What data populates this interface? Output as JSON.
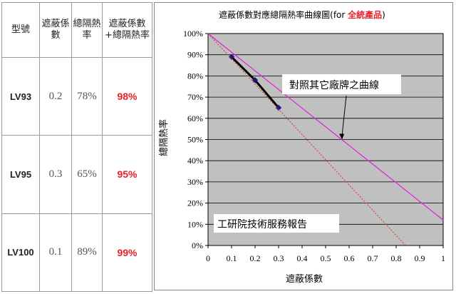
{
  "table": {
    "headers": [
      "型號",
      "遮蔽係數",
      "總隔熱率",
      "遮蔽係數+總隔熱率"
    ],
    "rows": [
      {
        "model": "LV93",
        "sc": "0.2",
        "tsr": "78%",
        "sum": "98%"
      },
      {
        "model": "LV95",
        "sc": "0.3",
        "tsr": "65%",
        "sum": "95%"
      },
      {
        "model": "LV100",
        "sc": "0.1",
        "tsr": "89%",
        "sum": "99%"
      }
    ]
  },
  "chart_data": {
    "type": "line",
    "title": "遮蔽係數對應總隔熱率曲線圖(for ",
    "title_highlight": "全統產品",
    "title_end": ")",
    "xlabel": "遮蔽係數",
    "ylabel": "總隔熱率",
    "xlim": [
      0,
      1
    ],
    "ylim": [
      0,
      100
    ],
    "x_ticks": [
      "0",
      "0.1",
      "0.2",
      "0.3",
      "0.4",
      "0.5",
      "0.6",
      "0.7",
      "0.8",
      "0.9",
      "1"
    ],
    "y_ticks": [
      "0%",
      "10%",
      "20%",
      "30%",
      "40%",
      "50%",
      "60%",
      "70%",
      "80%",
      "90%",
      "100%"
    ],
    "grid": true,
    "series": [
      {
        "name": "",
        "x": [
          0.1,
          0.2,
          0.3
        ],
        "y": [
          89,
          78,
          65
        ],
        "color": "#000000",
        "marker": "diamond"
      },
      {
        "name": "",
        "x": [
          0,
          0.84
        ],
        "y": [
          100,
          0
        ],
        "color": "#e03020",
        "style": "dotted"
      },
      {
        "name": "",
        "x": [
          0,
          1
        ],
        "y": [
          100,
          12
        ],
        "color": "#e020e0",
        "style": "solid"
      }
    ],
    "annotations": [
      {
        "text": "對照其它廠牌之曲線",
        "arrow_to": [
          0.57,
          50
        ]
      },
      {
        "text": "工研院技術服務報告"
      }
    ],
    "colors": {
      "plot_bg": "#c0c0c0",
      "highlight": "#e8202a"
    }
  }
}
